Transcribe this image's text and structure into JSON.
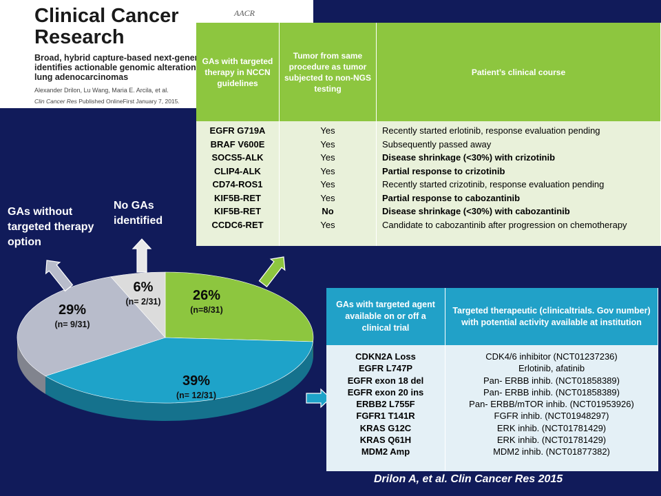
{
  "journal": {
    "title_line1": "Clinical Cancer",
    "title_line2": "Research",
    "logo": "AACR",
    "article_title": "Broad, hybrid capture-based next-generation sequencing\nidentifies actionable genomic alterations in\nlung adenocarcinomas",
    "authors": "Alexander Drilon, Lu Wang, Maria E. Arcila, et al.",
    "citation_journal": "Clin Cancer Res",
    "citation_rest": "Published OnlineFirst January 7, 2015."
  },
  "chart_data": {
    "type": "pie",
    "slices": [
      {
        "percent": 26,
        "n_label": "(n=8/31)",
        "color": "#8dc63f"
      },
      {
        "percent": 39,
        "n_label": "(n= 12/31)",
        "color": "#1ea3c9"
      },
      {
        "percent": 29,
        "n_label": "(n= 9/31)",
        "color": "#b8bccb"
      },
      {
        "percent": 6,
        "n_label": "(n= 2/31)",
        "color": "#dcdcdc"
      }
    ],
    "labels": {
      "without_targeted": "GAs without targeted therapy option",
      "no_gas": "No GAs identified"
    }
  },
  "table1": {
    "headers": [
      "GAs with targeted therapy in NCCN guidelines",
      "Tumor from same procedure as tumor subjected to non-NGS testing",
      "Patient’s clinical course"
    ],
    "alterations": [
      "EGFR G719A",
      "BRAF V600E",
      "SOCS5-ALK",
      "CLIP4-ALK",
      "CD74-ROS1",
      "KIF5B-RET",
      "KIF5B-RET",
      "CCDC6-RET"
    ],
    "same_procedure": [
      "Yes",
      "Yes",
      "Yes",
      "Yes",
      "Yes",
      "Yes",
      "No",
      "Yes"
    ],
    "course": [
      {
        "text": "Recently started erlotinib, response evaluation pending",
        "bold": false
      },
      {
        "text": "Subsequently passed away",
        "bold": false
      },
      {
        "text": "Disease shrinkage (<30%) with crizotinib",
        "bold": true
      },
      {
        "text": "Partial response to crizotinib",
        "bold": true
      },
      {
        "text": "Recently started crizotinib, response evaluation pending",
        "bold": false
      },
      {
        "text": "Partial response to cabozantinib",
        "bold": true
      },
      {
        "text": "Disease shrinkage (<30%) with cabozantinib",
        "bold": true
      },
      {
        "text": "Candidate to cabozantinib after progression on chemotherapy",
        "bold": false
      }
    ]
  },
  "table2": {
    "headers": [
      "GAs with targeted agent available on or off a clinical trial",
      "Targeted therapeutic (clinicaltrials. Gov number) with potential activity available at institution"
    ],
    "alterations": [
      "CDKN2A Loss",
      "EGFR L747P",
      "EGFR exon 18 del",
      "EGFR exon 20 ins",
      "ERBB2 L755F",
      "FGFR1 T141R",
      "KRAS G12C",
      "KRAS Q61H",
      "MDM2 Amp"
    ],
    "therapeutics": [
      "CDK4/6 inhibitor (NCT01237236)",
      "Erlotinib, afatinib",
      "Pan- ERBB inhib. (NCT01858389)",
      "Pan- ERBB inhib. (NCT01858389)",
      "Pan- ERBB/mTOR inhib. (NCT01953926)",
      "FGFR inhib. (NCT01948297)",
      "ERK inhib. (NCT01781429)",
      "ERK inhib. (NCT01781429)",
      "MDM2 inhib. (NCT01877382)"
    ]
  },
  "citation": "Drilon A, et al. Clin Cancer Res 2015"
}
